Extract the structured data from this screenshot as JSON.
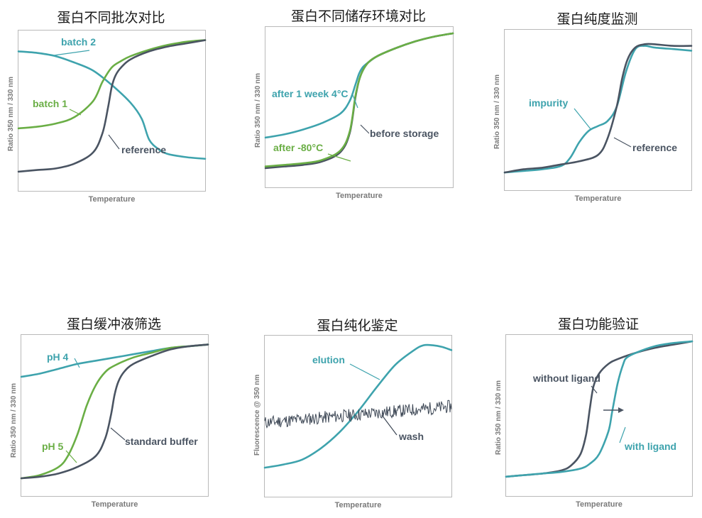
{
  "colors": {
    "teal": "#3ea3ad",
    "green": "#6aae45",
    "dark": "#4a5462",
    "noise": "#3c4654"
  },
  "chart_data": [
    {
      "type": "line",
      "title": "蛋白不同批次对比",
      "xlabel": "Temperature",
      "ylabel": "Ratio 350 nm / 330 nm",
      "xlim": [
        0,
        100
      ],
      "ylim": [
        0,
        100
      ],
      "series": [
        {
          "name": "batch 2",
          "color": "teal",
          "x": [
            0,
            10,
            20,
            30,
            40,
            50,
            60,
            66,
            70,
            75,
            80,
            90,
            100
          ],
          "y": [
            87,
            86,
            84,
            80,
            75,
            66,
            55,
            45,
            32,
            26,
            23,
            21,
            20
          ]
        },
        {
          "name": "batch 1",
          "color": "green",
          "x": [
            0,
            10,
            20,
            30,
            40,
            45,
            50,
            55,
            60,
            70,
            80,
            90,
            100
          ],
          "y": [
            39,
            40,
            42,
            46,
            56,
            68,
            77,
            81,
            84,
            88,
            91,
            93,
            94
          ]
        },
        {
          "name": "reference",
          "color": "dark",
          "x": [
            0,
            10,
            20,
            30,
            40,
            45,
            48,
            50,
            52,
            55,
            60,
            70,
            80,
            90,
            100
          ],
          "y": [
            12,
            13,
            14,
            17,
            24,
            36,
            52,
            65,
            72,
            77,
            82,
            87,
            90,
            92,
            94
          ]
        }
      ],
      "annotations": [
        "batch 2",
        "batch 1",
        "reference"
      ]
    },
    {
      "type": "line",
      "title": "蛋白不同储存环境对比",
      "xlabel": "Temperature",
      "ylabel": "Ratio 350 nm / 330 nm",
      "xlim": [
        0,
        100
      ],
      "ylim": [
        0,
        100
      ],
      "series": [
        {
          "name": "after 1 week 4°C",
          "color": "teal",
          "x": [
            0,
            10,
            20,
            30,
            40,
            45,
            48,
            50,
            52,
            55,
            60,
            70,
            80,
            90,
            100
          ],
          "y": [
            31,
            33,
            36,
            40,
            46,
            54,
            64,
            71,
            75,
            78,
            82,
            87,
            91,
            94,
            96
          ]
        },
        {
          "name": "before storage",
          "color": "dark",
          "x": [
            0,
            10,
            20,
            30,
            40,
            45,
            48,
            50,
            52,
            55,
            60,
            70,
            80,
            90,
            100
          ],
          "y": [
            12,
            13,
            14,
            16,
            22,
            34,
            56,
            67,
            73,
            78,
            82,
            87,
            91,
            94,
            96
          ]
        },
        {
          "name": "after -80°C",
          "color": "green",
          "x": [
            0,
            10,
            20,
            30,
            40,
            45,
            48,
            50,
            52,
            55,
            60,
            70,
            80,
            90,
            100
          ],
          "y": [
            13,
            14,
            15,
            17,
            23,
            35,
            57,
            67,
            73,
            78,
            82,
            87,
            91,
            94,
            96
          ]
        }
      ],
      "annotations": [
        "after 1 week 4°C",
        "before storage",
        "after -80°C"
      ]
    },
    {
      "type": "line",
      "title": "蛋白纯度监测",
      "xlabel": "Temperature",
      "ylabel": "Ratio 350 nm / 330 nm",
      "xlim": [
        0,
        100
      ],
      "ylim": [
        0,
        100
      ],
      "series": [
        {
          "name": "impurity",
          "color": "teal",
          "x": [
            0,
            10,
            20,
            30,
            35,
            40,
            45,
            50,
            55,
            60,
            65,
            70,
            75,
            80,
            90,
            100
          ],
          "y": [
            11,
            12,
            13,
            15,
            20,
            30,
            37,
            40,
            43,
            52,
            74,
            88,
            90,
            89,
            88,
            87
          ]
        },
        {
          "name": "reference",
          "color": "dark",
          "x": [
            0,
            10,
            20,
            30,
            40,
            50,
            55,
            60,
            63,
            66,
            70,
            75,
            80,
            90,
            100
          ],
          "y": [
            11,
            13,
            14,
            16,
            18,
            22,
            32,
            52,
            70,
            82,
            89,
            91,
            91,
            90,
            90
          ]
        }
      ],
      "annotations": [
        "impurity",
        "reference"
      ]
    },
    {
      "type": "line",
      "title": "蛋白缓冲液筛选",
      "xlabel": "Temperature",
      "ylabel": "Ratio 350 nm / 330 nm",
      "xlim": [
        0,
        100
      ],
      "ylim": [
        0,
        100
      ],
      "series": [
        {
          "name": "pH 4",
          "color": "teal",
          "x": [
            0,
            10,
            20,
            30,
            40,
            50,
            60,
            70,
            80,
            90,
            100
          ],
          "y": [
            74,
            76,
            79,
            82,
            84,
            86,
            88,
            90,
            92,
            93,
            94
          ]
        },
        {
          "name": "pH 5",
          "color": "green",
          "x": [
            0,
            10,
            20,
            25,
            30,
            35,
            40,
            45,
            50,
            60,
            70,
            80,
            90,
            100
          ],
          "y": [
            11,
            13,
            18,
            25,
            38,
            56,
            69,
            77,
            81,
            86,
            89,
            92,
            93,
            94
          ]
        },
        {
          "name": "standard buffer",
          "color": "dark",
          "x": [
            0,
            10,
            20,
            30,
            40,
            45,
            48,
            50,
            52,
            55,
            60,
            70,
            80,
            90,
            100
          ],
          "y": [
            11,
            12,
            14,
            18,
            25,
            36,
            50,
            63,
            71,
            77,
            82,
            87,
            91,
            93,
            94
          ]
        }
      ],
      "annotations": [
        "pH 4",
        "pH 5",
        "standard buffer"
      ]
    },
    {
      "type": "line",
      "title": "蛋白纯化鉴定",
      "xlabel": "Temperature",
      "ylabel": "Fluorescence @ 350 nm",
      "xlim": [
        0,
        100
      ],
      "ylim": [
        0,
        100
      ],
      "series": [
        {
          "name": "elution",
          "color": "teal",
          "x": [
            0,
            10,
            20,
            30,
            40,
            50,
            60,
            70,
            80,
            85,
            90,
            95,
            100
          ],
          "y": [
            18,
            20,
            23,
            30,
            40,
            53,
            68,
            82,
            91,
            94,
            94,
            93,
            91
          ]
        },
        {
          "name": "wash",
          "color": "noise",
          "kind": "noisy",
          "baseline": [
            46,
            56
          ],
          "amplitude": 4
        }
      ],
      "annotations": [
        "elution",
        "wash"
      ]
    },
    {
      "type": "line",
      "title": "蛋白功能验证",
      "xlabel": "Temperature",
      "ylabel": "Ratio 350 nm / 330 nm",
      "xlim": [
        0,
        100
      ],
      "ylim": [
        0,
        100
      ],
      "series": [
        {
          "name": "without ligand",
          "color": "dark",
          "x": [
            0,
            10,
            20,
            30,
            35,
            40,
            43,
            45,
            47,
            50,
            55,
            60,
            70,
            80,
            90,
            100
          ],
          "y": [
            12,
            13,
            14,
            16,
            19,
            26,
            38,
            54,
            68,
            76,
            82,
            85,
            89,
            92,
            94,
            96
          ]
        },
        {
          "name": "with ligand",
          "color": "teal",
          "x": [
            0,
            10,
            20,
            30,
            40,
            45,
            50,
            55,
            57,
            60,
            63,
            65,
            70,
            80,
            90,
            100
          ],
          "y": [
            12,
            13,
            14,
            15,
            17,
            20,
            26,
            40,
            52,
            70,
            82,
            86,
            89,
            93,
            95,
            96
          ]
        }
      ],
      "annotations": [
        "without ligand",
        "with ligand"
      ]
    }
  ]
}
